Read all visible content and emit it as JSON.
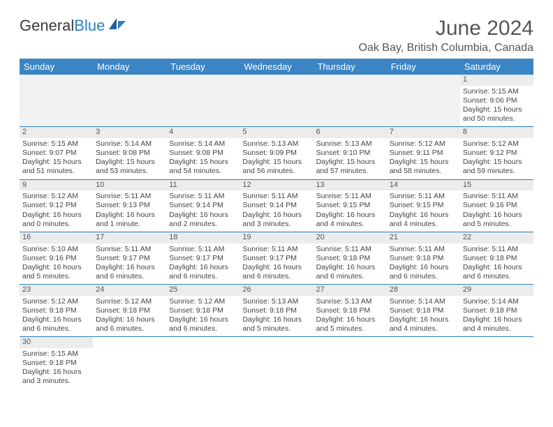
{
  "logo": {
    "general": "General",
    "blue": "Blue"
  },
  "title": "June 2024",
  "location": "Oak Bay, British Columbia, Canada",
  "weekdays": [
    "Sunday",
    "Monday",
    "Tuesday",
    "Wednesday",
    "Thursday",
    "Friday",
    "Saturday"
  ],
  "colors": {
    "header_bg": "#3b85c4",
    "header_fg": "#ffffff",
    "rule": "#2b7fbf",
    "band": "#ececec",
    "blank": "#f1f1f1"
  },
  "weeks": [
    [
      null,
      null,
      null,
      null,
      null,
      null,
      {
        "d": "1",
        "sr": "Sunrise: 5:15 AM",
        "ss": "Sunset: 9:06 PM",
        "dl": "Daylight: 15 hours and 50 minutes."
      }
    ],
    [
      {
        "d": "2",
        "sr": "Sunrise: 5:15 AM",
        "ss": "Sunset: 9:07 PM",
        "dl": "Daylight: 15 hours and 51 minutes."
      },
      {
        "d": "3",
        "sr": "Sunrise: 5:14 AM",
        "ss": "Sunset: 9:08 PM",
        "dl": "Daylight: 15 hours and 53 minutes."
      },
      {
        "d": "4",
        "sr": "Sunrise: 5:14 AM",
        "ss": "Sunset: 9:08 PM",
        "dl": "Daylight: 15 hours and 54 minutes."
      },
      {
        "d": "5",
        "sr": "Sunrise: 5:13 AM",
        "ss": "Sunset: 9:09 PM",
        "dl": "Daylight: 15 hours and 56 minutes."
      },
      {
        "d": "6",
        "sr": "Sunrise: 5:13 AM",
        "ss": "Sunset: 9:10 PM",
        "dl": "Daylight: 15 hours and 57 minutes."
      },
      {
        "d": "7",
        "sr": "Sunrise: 5:12 AM",
        "ss": "Sunset: 9:11 PM",
        "dl": "Daylight: 15 hours and 58 minutes."
      },
      {
        "d": "8",
        "sr": "Sunrise: 5:12 AM",
        "ss": "Sunset: 9:12 PM",
        "dl": "Daylight: 15 hours and 59 minutes."
      }
    ],
    [
      {
        "d": "9",
        "sr": "Sunrise: 5:12 AM",
        "ss": "Sunset: 9:12 PM",
        "dl": "Daylight: 16 hours and 0 minutes."
      },
      {
        "d": "10",
        "sr": "Sunrise: 5:11 AM",
        "ss": "Sunset: 9:13 PM",
        "dl": "Daylight: 16 hours and 1 minute."
      },
      {
        "d": "11",
        "sr": "Sunrise: 5:11 AM",
        "ss": "Sunset: 9:14 PM",
        "dl": "Daylight: 16 hours and 2 minutes."
      },
      {
        "d": "12",
        "sr": "Sunrise: 5:11 AM",
        "ss": "Sunset: 9:14 PM",
        "dl": "Daylight: 16 hours and 3 minutes."
      },
      {
        "d": "13",
        "sr": "Sunrise: 5:11 AM",
        "ss": "Sunset: 9:15 PM",
        "dl": "Daylight: 16 hours and 4 minutes."
      },
      {
        "d": "14",
        "sr": "Sunrise: 5:11 AM",
        "ss": "Sunset: 9:15 PM",
        "dl": "Daylight: 16 hours and 4 minutes."
      },
      {
        "d": "15",
        "sr": "Sunrise: 5:11 AM",
        "ss": "Sunset: 9:16 PM",
        "dl": "Daylight: 16 hours and 5 minutes."
      }
    ],
    [
      {
        "d": "16",
        "sr": "Sunrise: 5:10 AM",
        "ss": "Sunset: 9:16 PM",
        "dl": "Daylight: 16 hours and 5 minutes."
      },
      {
        "d": "17",
        "sr": "Sunrise: 5:11 AM",
        "ss": "Sunset: 9:17 PM",
        "dl": "Daylight: 16 hours and 6 minutes."
      },
      {
        "d": "18",
        "sr": "Sunrise: 5:11 AM",
        "ss": "Sunset: 9:17 PM",
        "dl": "Daylight: 16 hours and 6 minutes."
      },
      {
        "d": "19",
        "sr": "Sunrise: 5:11 AM",
        "ss": "Sunset: 9:17 PM",
        "dl": "Daylight: 16 hours and 6 minutes."
      },
      {
        "d": "20",
        "sr": "Sunrise: 5:11 AM",
        "ss": "Sunset: 9:18 PM",
        "dl": "Daylight: 16 hours and 6 minutes."
      },
      {
        "d": "21",
        "sr": "Sunrise: 5:11 AM",
        "ss": "Sunset: 9:18 PM",
        "dl": "Daylight: 16 hours and 6 minutes."
      },
      {
        "d": "22",
        "sr": "Sunrise: 5:11 AM",
        "ss": "Sunset: 9:18 PM",
        "dl": "Daylight: 16 hours and 6 minutes."
      }
    ],
    [
      {
        "d": "23",
        "sr": "Sunrise: 5:12 AM",
        "ss": "Sunset: 9:18 PM",
        "dl": "Daylight: 16 hours and 6 minutes."
      },
      {
        "d": "24",
        "sr": "Sunrise: 5:12 AM",
        "ss": "Sunset: 9:18 PM",
        "dl": "Daylight: 16 hours and 6 minutes."
      },
      {
        "d": "25",
        "sr": "Sunrise: 5:12 AM",
        "ss": "Sunset: 9:18 PM",
        "dl": "Daylight: 16 hours and 6 minutes."
      },
      {
        "d": "26",
        "sr": "Sunrise: 5:13 AM",
        "ss": "Sunset: 9:18 PM",
        "dl": "Daylight: 16 hours and 5 minutes."
      },
      {
        "d": "27",
        "sr": "Sunrise: 5:13 AM",
        "ss": "Sunset: 9:18 PM",
        "dl": "Daylight: 16 hours and 5 minutes."
      },
      {
        "d": "28",
        "sr": "Sunrise: 5:14 AM",
        "ss": "Sunset: 9:18 PM",
        "dl": "Daylight: 16 hours and 4 minutes."
      },
      {
        "d": "29",
        "sr": "Sunrise: 5:14 AM",
        "ss": "Sunset: 9:18 PM",
        "dl": "Daylight: 16 hours and 4 minutes."
      }
    ],
    [
      {
        "d": "30",
        "sr": "Sunrise: 5:15 AM",
        "ss": "Sunset: 9:18 PM",
        "dl": "Daylight: 16 hours and 3 minutes."
      },
      null,
      null,
      null,
      null,
      null,
      null
    ]
  ]
}
